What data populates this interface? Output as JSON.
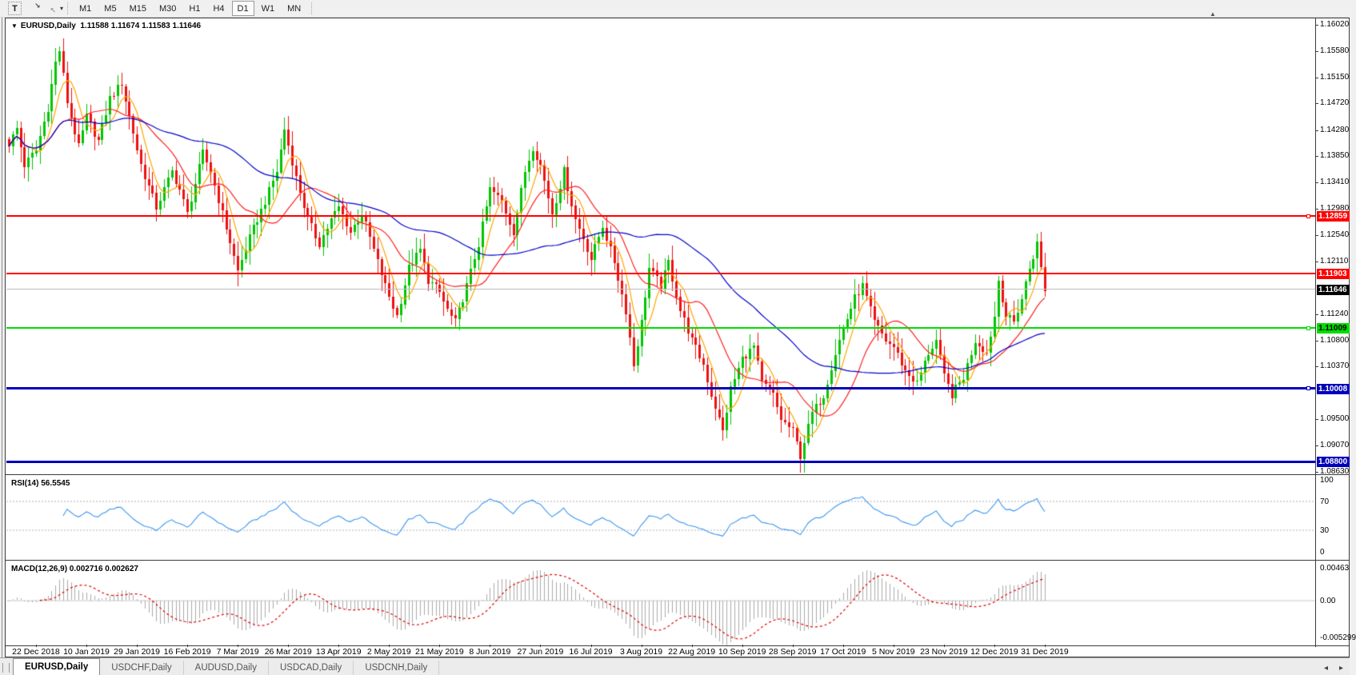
{
  "toolbar": {
    "text_tool": "T",
    "arrange_caret": "▾",
    "timeframes": [
      "M1",
      "M5",
      "M15",
      "M30",
      "H1",
      "H4",
      "D1",
      "W1",
      "MN"
    ],
    "active_timeframe": "D1"
  },
  "chart_header": {
    "dropdown_icon": "▼",
    "title": "EURUSD,Daily",
    "ohlc": "1.11588 1.11674 1.11583 1.11646"
  },
  "shift_marker": "▲",
  "price_axis_ticks": [
    "1.16020",
    "1.15580",
    "1.15150",
    "1.14720",
    "1.14280",
    "1.13850",
    "1.13410",
    "1.12980",
    "1.12540",
    "1.12110",
    "1.11240",
    "1.10800",
    "1.10370",
    "1.09500",
    "1.09070",
    "1.08630"
  ],
  "levels": [
    {
      "label": "1.12859",
      "price": 1.12859,
      "type": "resistance-line",
      "color": "#ff0000",
      "text_color": "#ffffff",
      "thickness": 2,
      "handle": true
    },
    {
      "label": "1.11903",
      "price": 1.11903,
      "type": "resistance-line",
      "color": "#ff0000",
      "text_color": "#ffffff",
      "thickness": 2,
      "handle": false
    },
    {
      "label": "1.11646",
      "price": 1.11646,
      "type": "current-price",
      "color": "#000000",
      "text_color": "#ffffff",
      "thickness": 1,
      "line_color": "#bdbdbd",
      "handle": false
    },
    {
      "label": "1.11009",
      "price": 1.11009,
      "type": "support-line",
      "color": "#00dd00",
      "text_color": "#000000",
      "thickness": 2,
      "handle": true
    },
    {
      "label": "1.10008",
      "price": 1.10008,
      "type": "support-line",
      "color": "#0000bb",
      "text_color": "#ffffff",
      "thickness": 3,
      "handle": true
    },
    {
      "label": "1.08800",
      "price": 1.088,
      "type": "support-line",
      "color": "#0000bb",
      "text_color": "#ffffff",
      "thickness": 3,
      "handle": false
    }
  ],
  "rsi": {
    "label": "RSI(14) 56.5545",
    "value": 56.5545,
    "period": 14,
    "color": "#3c96f0",
    "ticks": [
      {
        "label": "100",
        "v": 100,
        "dashed": false
      },
      {
        "label": "70",
        "v": 70,
        "dashed": true
      },
      {
        "label": "30",
        "v": 30,
        "dashed": true
      },
      {
        "label": "0",
        "v": 0,
        "dashed": false
      }
    ]
  },
  "macd": {
    "label": "MACD(12,26,9) 0.002716 0.002627",
    "macd_value": 0.002716,
    "signal_value": 0.002627,
    "fast": 12,
    "slow": 26,
    "signal_period": 9,
    "hist_color": "#ababab",
    "signal_color": "#e00000",
    "ticks": [
      {
        "label": "0.00463",
        "v": 0.00463
      },
      {
        "label": "0.00",
        "v": 0
      },
      {
        "label": "-0.005299",
        "v": -0.005299
      }
    ]
  },
  "date_axis": [
    "22 Dec 2018",
    "10 Jan 2019",
    "29 Jan 2019",
    "16 Feb 2019",
    "7 Mar 2019",
    "26 Mar 2019",
    "13 Apr 2019",
    "2 May 2019",
    "21 May 2019",
    "8 Jun 2019",
    "27 Jun 2019",
    "16 Jul 2019",
    "3 Aug 2019",
    "22 Aug 2019",
    "10 Sep 2019",
    "28 Sep 2019",
    "17 Oct 2019",
    "5 Nov 2019",
    "23 Nov 2019",
    "12 Dec 2019",
    "31 Dec 2019"
  ],
  "tabs": [
    {
      "label": "EURUSD,Daily",
      "active": true
    },
    {
      "label": "USDCHF,Daily",
      "active": false
    },
    {
      "label": "AUDUSD,Daily",
      "active": false
    },
    {
      "label": "USDCAD,Daily",
      "active": false
    },
    {
      "label": "USDCNH,Daily",
      "active": false
    }
  ],
  "tab_scroll": {
    "left": "◂",
    "right": "▸"
  },
  "chart_data": {
    "type": "candlestick",
    "symbol": "EURUSD",
    "timeframe": "Daily",
    "visible_range": {
      "from": "22 Dec 2018",
      "to": "31 Dec 2019"
    },
    "last_bar": {
      "open": 1.11588,
      "high": 1.11674,
      "low": 1.11583,
      "close": 1.11646
    },
    "ylim": [
      1.0859,
      1.16126
    ],
    "bars": 268,
    "bars_per_date_label": 13,
    "first_label_bar": 7,
    "up_color": "#00c400",
    "down_color": "#ee1111",
    "ma_lines": [
      {
        "name": "fast-ma",
        "period": 6,
        "color": "#ffa500"
      },
      {
        "name": "mid-ma",
        "period": 16,
        "color": "#ff2020"
      },
      {
        "name": "slow-ma",
        "period": 50,
        "color": "#0000cc"
      }
    ],
    "close_anchors": [
      [
        0,
        1.1405
      ],
      [
        2,
        1.143
      ],
      [
        4,
        1.137
      ],
      [
        7,
        1.1395
      ],
      [
        10,
        1.1465
      ],
      [
        12,
        1.154
      ],
      [
        13,
        1.156
      ],
      [
        15,
        1.1475
      ],
      [
        18,
        1.14
      ],
      [
        20,
        1.145
      ],
      [
        23,
        1.141
      ],
      [
        26,
        1.148
      ],
      [
        29,
        1.1505
      ],
      [
        31,
        1.145
      ],
      [
        34,
        1.137
      ],
      [
        38,
        1.13
      ],
      [
        42,
        1.136
      ],
      [
        44,
        1.133
      ],
      [
        46,
        1.129
      ],
      [
        48,
        1.134
      ],
      [
        50,
        1.139
      ],
      [
        52,
        1.136
      ],
      [
        55,
        1.129
      ],
      [
        59,
        1.1195
      ],
      [
        62,
        1.125
      ],
      [
        66,
        1.131
      ],
      [
        69,
        1.136
      ],
      [
        71,
        1.143
      ],
      [
        74,
        1.135
      ],
      [
        77,
        1.128
      ],
      [
        80,
        1.124
      ],
      [
        83,
        1.128
      ],
      [
        85,
        1.13
      ],
      [
        88,
        1.126
      ],
      [
        91,
        1.129
      ],
      [
        94,
        1.123
      ],
      [
        97,
        1.117
      ],
      [
        100,
        1.112
      ],
      [
        103,
        1.12
      ],
      [
        106,
        1.123
      ],
      [
        108,
        1.118
      ],
      [
        111,
        1.116
      ],
      [
        113,
        1.113
      ],
      [
        115,
        1.111
      ],
      [
        118,
        1.117
      ],
      [
        121,
        1.124
      ],
      [
        124,
        1.133
      ],
      [
        127,
        1.131
      ],
      [
        130,
        1.126
      ],
      [
        133,
        1.136
      ],
      [
        135,
        1.14
      ],
      [
        137,
        1.137
      ],
      [
        140,
        1.129
      ],
      [
        143,
        1.136
      ],
      [
        146,
        1.128
      ],
      [
        148,
        1.125
      ],
      [
        150,
        1.1215
      ],
      [
        153,
        1.127
      ],
      [
        156,
        1.121
      ],
      [
        159,
        1.113
      ],
      [
        161,
        1.104
      ],
      [
        163,
        1.111
      ],
      [
        165,
        1.12
      ],
      [
        168,
        1.117
      ],
      [
        170,
        1.121
      ],
      [
        173,
        1.113
      ],
      [
        176,
        1.108
      ],
      [
        179,
        1.104
      ],
      [
        181,
        1.099
      ],
      [
        184,
        1.093
      ],
      [
        186,
        1.1
      ],
      [
        189,
        1.105
      ],
      [
        192,
        1.107
      ],
      [
        194,
        1.101
      ],
      [
        197,
        1.099
      ],
      [
        199,
        1.095
      ],
      [
        202,
        1.093
      ],
      [
        204,
        1.089
      ],
      [
        207,
        1.096
      ],
      [
        210,
        1.099
      ],
      [
        213,
        1.106
      ],
      [
        215,
        1.11
      ],
      [
        218,
        1.115
      ],
      [
        220,
        1.117
      ],
      [
        223,
        1.111
      ],
      [
        226,
        1.108
      ],
      [
        228,
        1.107
      ],
      [
        231,
        1.103
      ],
      [
        234,
        1.101
      ],
      [
        237,
        1.106
      ],
      [
        239,
        1.108
      ],
      [
        241,
        1.102
      ],
      [
        243,
        1.099
      ],
      [
        246,
        1.102
      ],
      [
        249,
        1.108
      ],
      [
        252,
        1.106
      ],
      [
        254,
        1.112
      ],
      [
        255,
        1.118
      ],
      [
        257,
        1.112
      ],
      [
        259,
        1.111
      ],
      [
        261,
        1.115
      ],
      [
        263,
        1.12
      ],
      [
        265,
        1.124
      ],
      [
        266,
        1.12
      ],
      [
        267,
        1.1165
      ]
    ]
  }
}
